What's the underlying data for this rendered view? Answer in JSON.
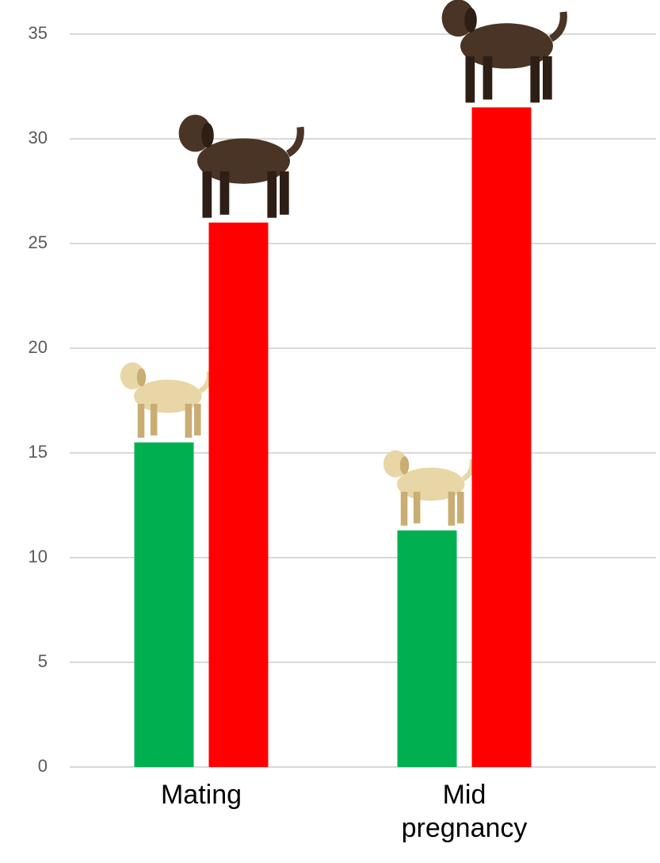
{
  "chart_data": {
    "type": "bar",
    "categories": [
      "Mating",
      "Mid pregnancy"
    ],
    "series": [
      {
        "color": "#00b050",
        "values": [
          15.5,
          11.3
        ]
      },
      {
        "color": "#ff0000",
        "values": [
          26,
          31.5
        ]
      }
    ],
    "ylim": [
      0,
      35
    ],
    "yticks": [
      0,
      5,
      10,
      15,
      20,
      25,
      30,
      35
    ],
    "grid": true
  }
}
